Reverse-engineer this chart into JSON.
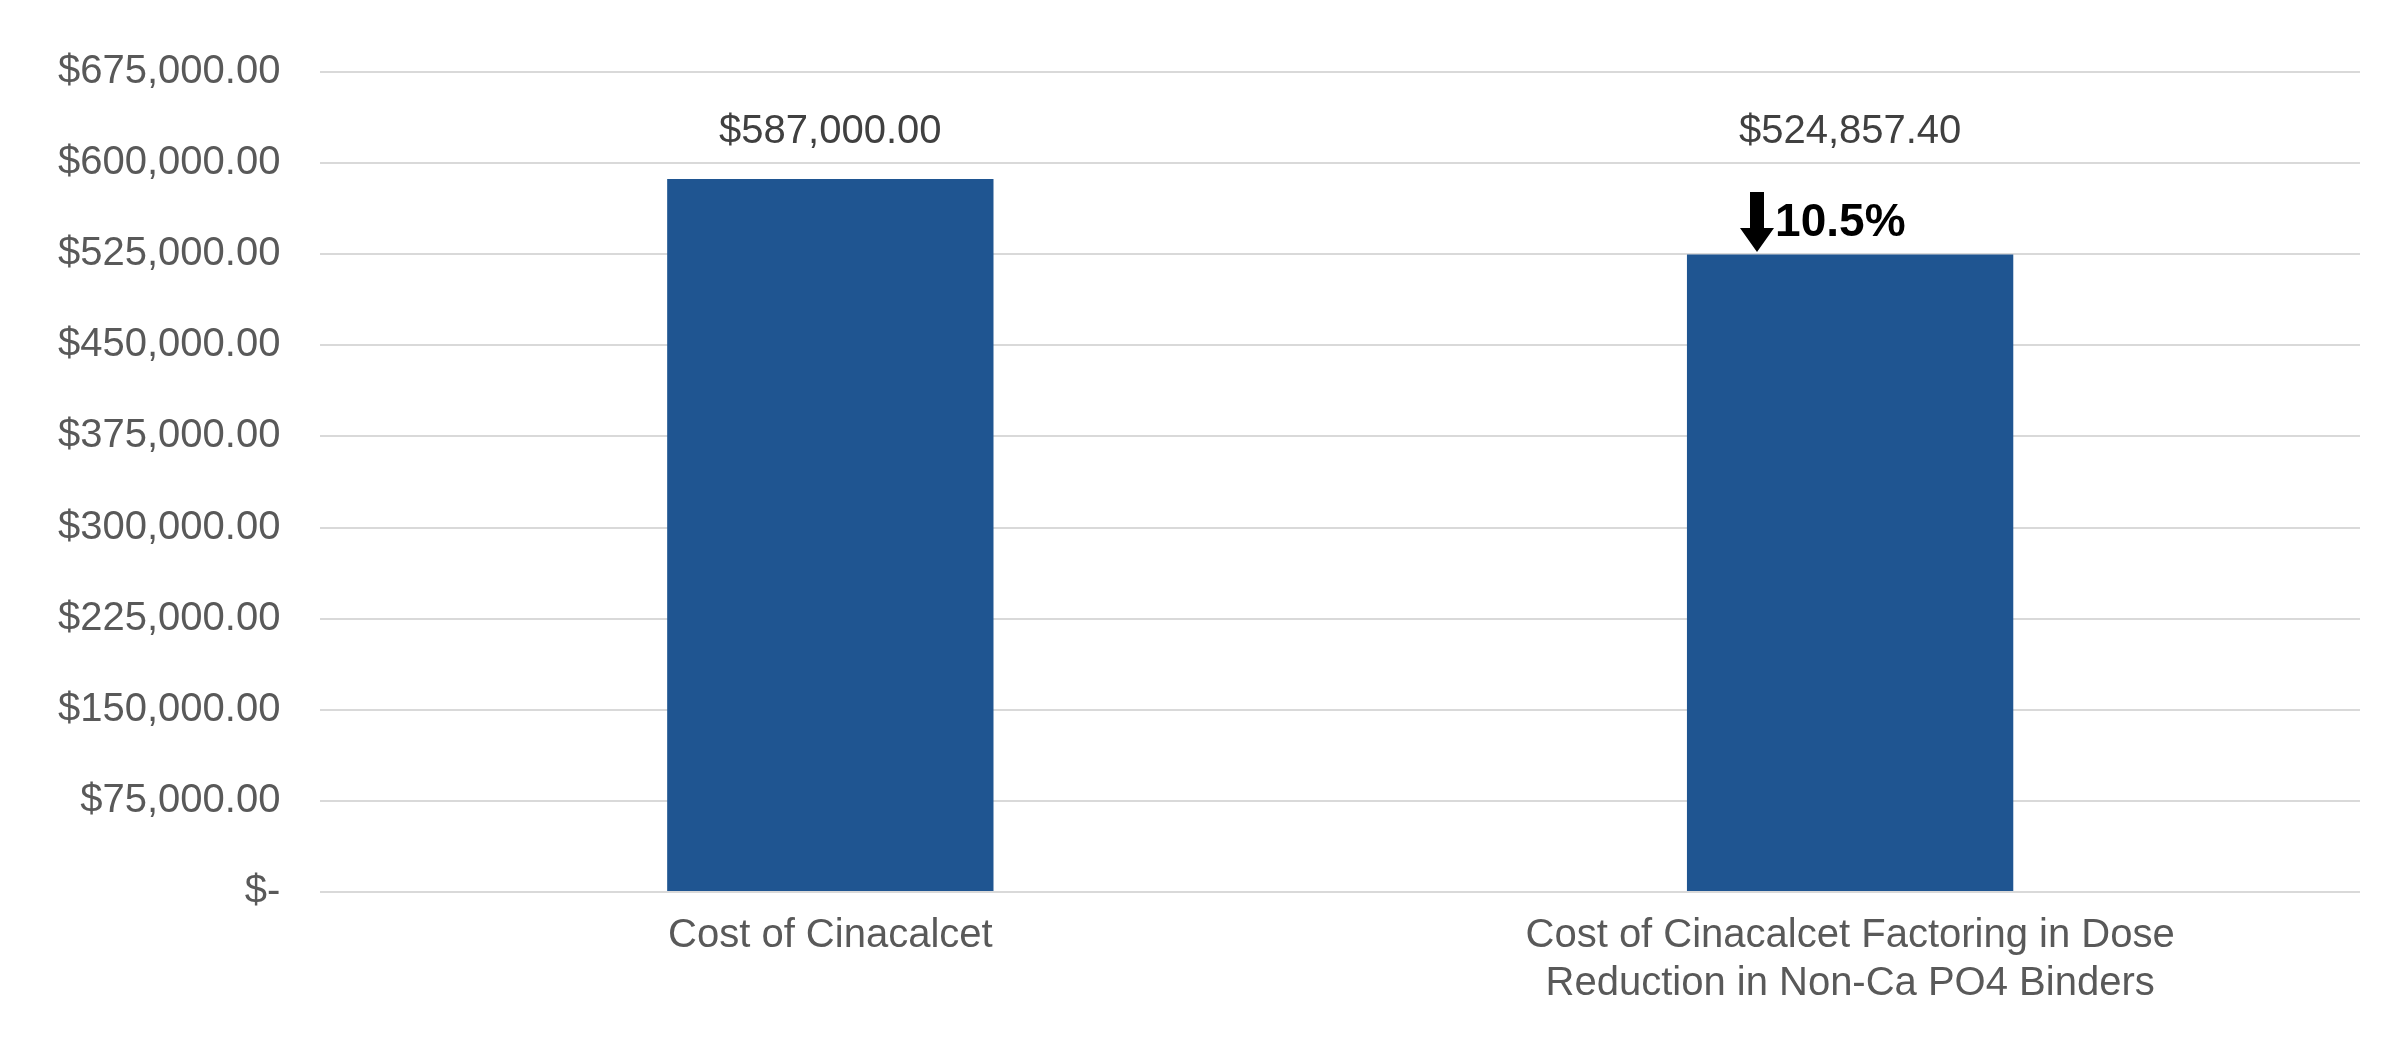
{
  "chart_data": {
    "type": "bar",
    "categories": [
      "Cost of Cinacalcet",
      "Cost of Cinacalcet Factoring in Dose Reduction in Non-Ca PO4 Binders"
    ],
    "values": [
      587000,
      524857.4
    ],
    "value_labels": [
      "$587,000.00",
      "$524,857.40"
    ],
    "color": "#1f5591",
    "ylim": [
      0,
      675000
    ],
    "yticks": [
      {
        "value": 0,
        "label": "$-"
      },
      {
        "value": 75000,
        "label": "$75,000.00"
      },
      {
        "value": 150000,
        "label": "$150,000.00"
      },
      {
        "value": 225000,
        "label": "$225,000.00"
      },
      {
        "value": 300000,
        "label": "$300,000.00"
      },
      {
        "value": 375000,
        "label": "$375,000.00"
      },
      {
        "value": 450000,
        "label": "$450,000.00"
      },
      {
        "value": 525000,
        "label": "$525,000.00"
      },
      {
        "value": 600000,
        "label": "$600,000.00"
      },
      {
        "value": 675000,
        "label": "$675,000.00"
      }
    ],
    "grid": "y",
    "legend": false,
    "annotations": [
      {
        "text": "10.5%",
        "x": "Cost of Cinacalcet Factoring in Dose Reduction in Non-Ca PO4 Binders",
        "y": 524857.4
      }
    ]
  }
}
